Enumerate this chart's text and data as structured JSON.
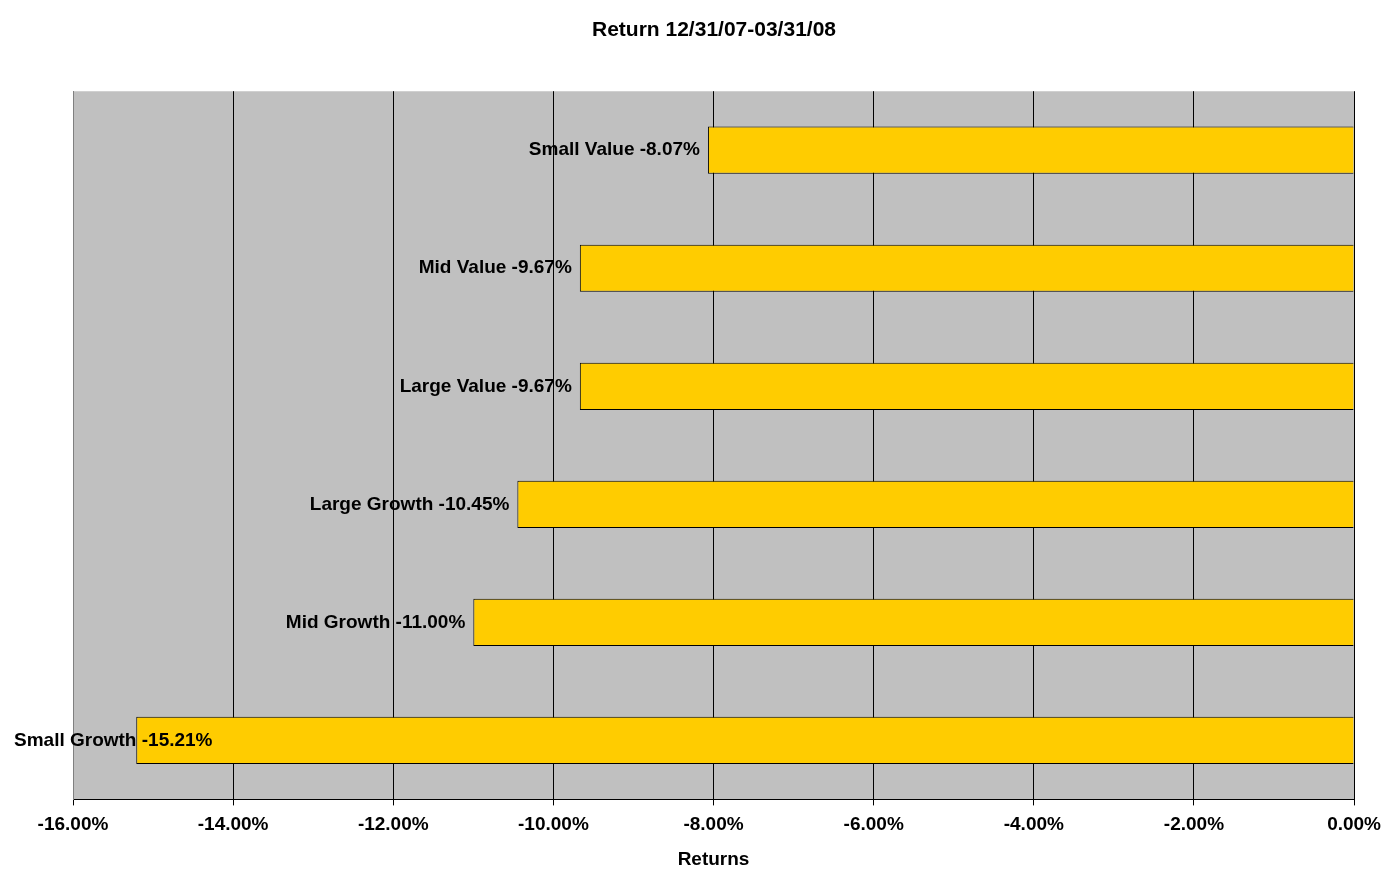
{
  "chart_data": {
    "type": "bar",
    "orientation": "horizontal",
    "title": "Return 12/31/07-03/31/08",
    "xlabel": "Returns",
    "categories": [
      "Small Value",
      "Mid Value",
      "Large Value",
      "Large Growth",
      "Mid Growth",
      "Small Growth"
    ],
    "values": [
      -8.07,
      -9.67,
      -9.67,
      -10.45,
      -11.0,
      -15.21
    ],
    "value_labels": [
      "-8.07%",
      "-9.67%",
      "-9.67%",
      "-10.45%",
      "-11.00%",
      "-15.21%"
    ],
    "color": "#ffcc00",
    "xlim": [
      -16,
      0
    ],
    "xticks": [
      {
        "value": -16,
        "label": "-16.00%"
      },
      {
        "value": -14,
        "label": "-14.00%"
      },
      {
        "value": -12,
        "label": "-12.00%"
      },
      {
        "value": -10,
        "label": "-10.00%"
      },
      {
        "value": -8,
        "label": "-8.00%"
      },
      {
        "value": -6,
        "label": "-6.00%"
      },
      {
        "value": -4,
        "label": "-4.00%"
      },
      {
        "value": -2,
        "label": "-2.00%"
      },
      {
        "value": 0,
        "label": "0.00%"
      }
    ],
    "grid": "x",
    "tick_labels": "x",
    "legend": false
  }
}
